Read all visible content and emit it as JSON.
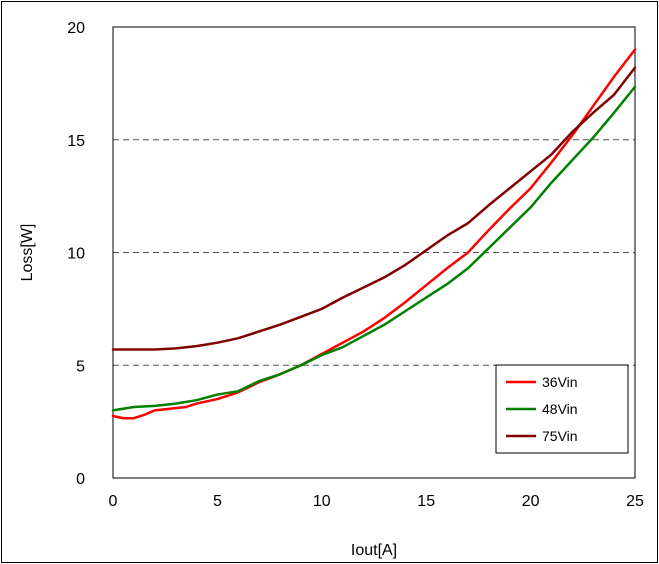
{
  "chart_data": {
    "type": "line",
    "title": "",
    "xlabel": "Iout[A]",
    "ylabel": "Loss[W]",
    "xlim": [
      0,
      25
    ],
    "ylim": [
      0,
      20
    ],
    "xticks": [
      0,
      5,
      10,
      15,
      20,
      25
    ],
    "yticks": [
      0,
      5,
      10,
      15,
      20
    ],
    "grid": "horizontal dashed at 5, 10, 15",
    "legend_position": "bottom-right",
    "series": [
      {
        "name": "36Vin",
        "color": "#ff0000",
        "points": [
          [
            0,
            2.75
          ],
          [
            0.5,
            2.65
          ],
          [
            1,
            2.65
          ],
          [
            1.5,
            2.8
          ],
          [
            2,
            3.0
          ],
          [
            2.5,
            3.05
          ],
          [
            3,
            3.1
          ],
          [
            3.5,
            3.15
          ],
          [
            4,
            3.3
          ],
          [
            5,
            3.5
          ],
          [
            6,
            3.8
          ],
          [
            7,
            4.25
          ],
          [
            8,
            4.6
          ],
          [
            9,
            5.0
          ],
          [
            10,
            5.5
          ],
          [
            11,
            6.0
          ],
          [
            12,
            6.5
          ],
          [
            13,
            7.1
          ],
          [
            14,
            7.8
          ],
          [
            15,
            8.55
          ],
          [
            16,
            9.3
          ],
          [
            17,
            10.0
          ],
          [
            18,
            11.0
          ],
          [
            19,
            11.95
          ],
          [
            20,
            12.85
          ],
          [
            21,
            14.0
          ],
          [
            22,
            15.2
          ],
          [
            23,
            16.5
          ],
          [
            24,
            17.8
          ],
          [
            25,
            19.0
          ]
        ]
      },
      {
        "name": "48Vin",
        "color": "#008000",
        "points": [
          [
            0,
            3.0
          ],
          [
            1,
            3.15
          ],
          [
            2,
            3.2
          ],
          [
            3,
            3.3
          ],
          [
            4,
            3.45
          ],
          [
            5,
            3.7
          ],
          [
            6,
            3.85
          ],
          [
            7,
            4.3
          ],
          [
            8,
            4.6
          ],
          [
            9,
            5.0
          ],
          [
            10,
            5.45
          ],
          [
            11,
            5.8
          ],
          [
            12,
            6.3
          ],
          [
            13,
            6.8
          ],
          [
            14,
            7.4
          ],
          [
            15,
            8.0
          ],
          [
            16,
            8.6
          ],
          [
            17,
            9.3
          ],
          [
            18,
            10.2
          ],
          [
            19,
            11.1
          ],
          [
            20,
            12.0
          ],
          [
            21,
            13.1
          ],
          [
            22,
            14.1
          ],
          [
            23,
            15.1
          ],
          [
            24,
            16.2
          ],
          [
            25,
            17.35
          ]
        ]
      },
      {
        "name": "75Vin",
        "color": "#800000",
        "points": [
          [
            0,
            5.7
          ],
          [
            1,
            5.7
          ],
          [
            2,
            5.7
          ],
          [
            3,
            5.75
          ],
          [
            4,
            5.85
          ],
          [
            5,
            6.0
          ],
          [
            6,
            6.2
          ],
          [
            7,
            6.5
          ],
          [
            8,
            6.8
          ],
          [
            9,
            7.15
          ],
          [
            10,
            7.5
          ],
          [
            11,
            8.0
          ],
          [
            12,
            8.45
          ],
          [
            13,
            8.9
          ],
          [
            14,
            9.45
          ],
          [
            15,
            10.1
          ],
          [
            16,
            10.75
          ],
          [
            17,
            11.3
          ],
          [
            18,
            12.1
          ],
          [
            19,
            12.85
          ],
          [
            20,
            13.6
          ],
          [
            21,
            14.35
          ],
          [
            22,
            15.35
          ],
          [
            23,
            16.2
          ],
          [
            24,
            17.0
          ],
          [
            25,
            18.2
          ]
        ]
      }
    ]
  }
}
